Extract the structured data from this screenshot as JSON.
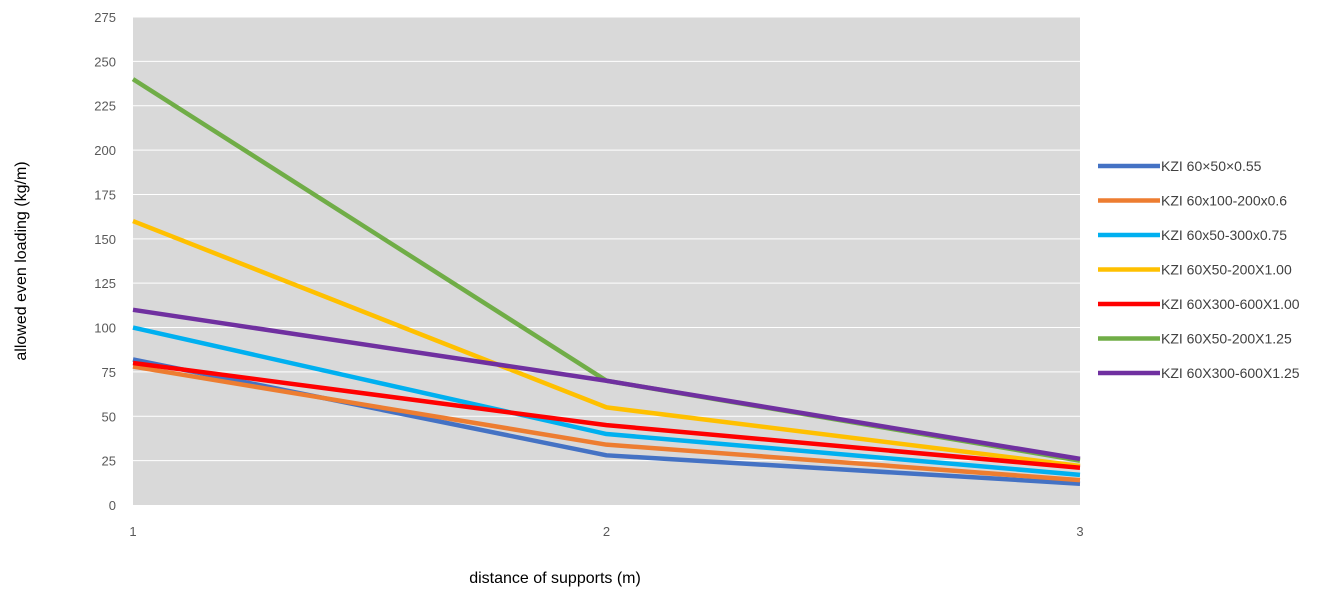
{
  "chart_data": {
    "type": "line",
    "title": "",
    "xlabel": "distance of supports (m)",
    "ylabel": "allowed even loading (kg/m)",
    "x": [
      1,
      2,
      3
    ],
    "x_tick_labels": [
      "1",
      "2",
      "3"
    ],
    "ylim": [
      0,
      275
    ],
    "y_ticks": [
      0,
      25,
      50,
      75,
      100,
      125,
      150,
      175,
      200,
      225,
      250,
      275
    ],
    "grid": true,
    "legend_position": "right",
    "plot_background": "#d9d9d9",
    "series": [
      {
        "name": "KZI 60×50×0.55",
        "values": [
          82,
          28,
          12
        ],
        "color": "#4472c4"
      },
      {
        "name": "KZI 60x100-200x0.6",
        "values": [
          78,
          34,
          14
        ],
        "color": "#ed7d31"
      },
      {
        "name": "KZI 60x50-300x0.75",
        "values": [
          100,
          40,
          17
        ],
        "color": "#00b0f0"
      },
      {
        "name": "KZI 60X50-200X1.00",
        "values": [
          160,
          55,
          22
        ],
        "color": "#ffc000"
      },
      {
        "name": "KZI 60X300-600X1.00",
        "values": [
          80,
          45,
          21
        ],
        "color": "#ff0000"
      },
      {
        "name": "KZI 60X50-200X1.25",
        "values": [
          240,
          70,
          25
        ],
        "color": "#70ad47"
      },
      {
        "name": "KZI 60X300-600X1.25",
        "values": [
          110,
          70,
          26
        ],
        "color": "#7030a0"
      }
    ]
  }
}
